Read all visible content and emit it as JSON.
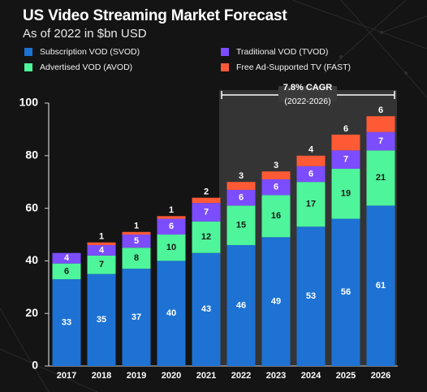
{
  "header": {
    "title": "US Video Streaming Market Forecast",
    "subtitle": "As of 2022 in $bn USD"
  },
  "legend": [
    {
      "label": "Subscription VOD (SVOD)",
      "color": "#1d72d4"
    },
    {
      "label": "Traditional VOD (TVOD)",
      "color": "#7c4dff"
    },
    {
      "label": "Advertised VOD (AVOD)",
      "color": "#4ef59a"
    },
    {
      "label": "Free Ad-Supported TV (FAST)",
      "color": "#ff5a36"
    }
  ],
  "forecast_box": {
    "label": "7.8% CAGR",
    "sublabel": "(2022-2026)"
  },
  "chart_data": {
    "type": "bar",
    "stacked": true,
    "categories": [
      "2017",
      "2018",
      "2019",
      "2020",
      "2021",
      "2022",
      "2023",
      "2024",
      "2025",
      "2026"
    ],
    "series": [
      {
        "name": "Subscription VOD (SVOD)",
        "color": "#1d72d4",
        "values": [
          33,
          35,
          37,
          40,
          43,
          46,
          49,
          53,
          56,
          61
        ]
      },
      {
        "name": "Advertised VOD (AVOD)",
        "color": "#4ef59a",
        "values": [
          6,
          7,
          8,
          10,
          12,
          15,
          16,
          17,
          19,
          21
        ]
      },
      {
        "name": "Traditional VOD (TVOD)",
        "color": "#7c4dff",
        "values": [
          4,
          4,
          5,
          6,
          7,
          6,
          6,
          6,
          7,
          7
        ]
      },
      {
        "name": "Free Ad-Supported TV (FAST)",
        "color": "#ff5a36",
        "values": [
          0,
          1,
          1,
          1,
          2,
          3,
          3,
          4,
          6,
          6
        ]
      }
    ],
    "ylim": [
      0,
      100
    ],
    "yticks": [
      0,
      20,
      40,
      60,
      80,
      100
    ],
    "grid": false
  }
}
